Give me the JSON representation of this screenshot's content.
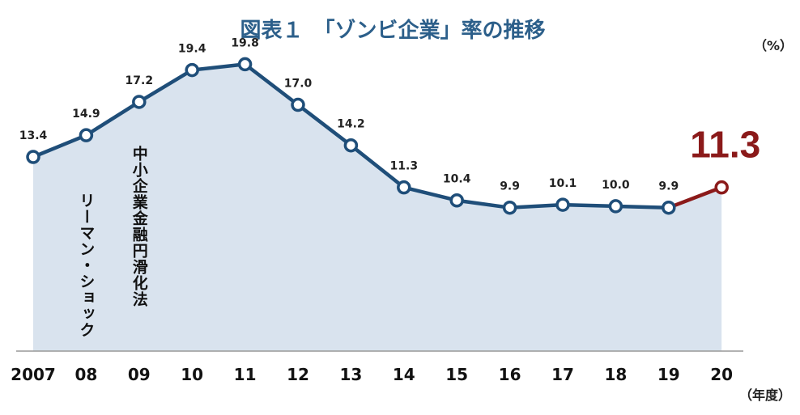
{
  "chart_data": {
    "type": "line",
    "title": "図表１　「ゾンビ企業」率の推移",
    "unit_label": "（%）",
    "x_unit_label": "（年度）",
    "categories": [
      "2007",
      "08",
      "09",
      "10",
      "11",
      "12",
      "13",
      "14",
      "15",
      "16",
      "17",
      "18",
      "19",
      "20"
    ],
    "series": [
      {
        "values": [
          13.4,
          14.9,
          17.2,
          19.4,
          19.8,
          17.0,
          14.2,
          11.3,
          10.4,
          9.9,
          10.1,
          10.0,
          9.9,
          11.3
        ],
        "labels": [
          "13.4",
          "14.9",
          "17.2",
          "19.4",
          "19.8",
          "17.0",
          "14.2",
          "11.3",
          "10.4",
          "9.9",
          "10.1",
          "10.0",
          "9.9",
          "11.3"
        ]
      }
    ],
    "highlight_last": true,
    "ylim": [
      0,
      22
    ],
    "annotations": [
      {
        "x": "08",
        "text": "リーマン・ショック"
      },
      {
        "x": "09",
        "text": "中小企業金融円滑化法"
      }
    ],
    "grid": false,
    "colors": {
      "line": "#1f4e79",
      "area": "#d9e3ee",
      "highlight": "#8b1a1a",
      "title": "#2c5f8a"
    }
  }
}
